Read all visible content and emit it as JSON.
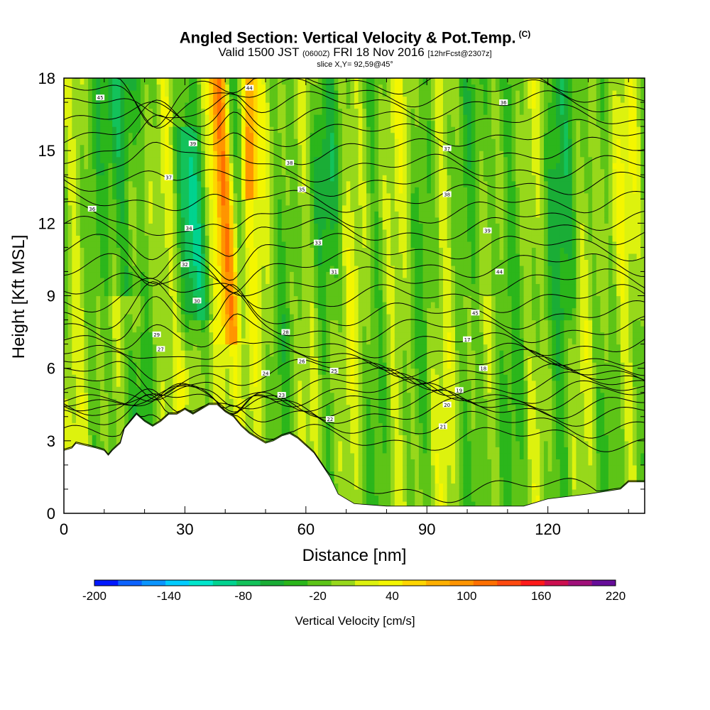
{
  "chart_data": {
    "type": "heatmap",
    "title": "Angled Section: Vertical Velocity & Pot.Temp.",
    "title_unit": "(C)",
    "subtitle": {
      "valid": "Valid 1500 JST",
      "utc": "(0600Z)",
      "date": "FRI 18 Nov 2016",
      "forecast": "[12hrFcst@2307z]"
    },
    "slice_note": "slice X,Y= 92,59@45°",
    "xlabel": "Distance [nm]",
    "ylabel": "Height [Kft MSL]",
    "xlim": [
      0,
      144
    ],
    "ylim": [
      0,
      18
    ],
    "x_ticks": [
      0,
      30,
      60,
      90,
      120
    ],
    "y_ticks": [
      0,
      3,
      6,
      9,
      12,
      15,
      18
    ],
    "colorbar": {
      "title": "Vertical Velocity [cm/s]",
      "levels": [
        -200,
        -180,
        -160,
        -140,
        -120,
        -100,
        -80,
        -60,
        -40,
        -20,
        0,
        20,
        40,
        60,
        80,
        100,
        120,
        140,
        160,
        180,
        200,
        220
      ],
      "labels": [
        "-200",
        "-140",
        "-80",
        "-20",
        "40",
        "100",
        "160",
        "220"
      ],
      "colors": [
        "#0018ff",
        "#0c63ff",
        "#0a95ff",
        "#00ccff",
        "#00e6cc",
        "#00d38f",
        "#13c25a",
        "#1aad36",
        "#2bb61b",
        "#5dc417",
        "#97d81b",
        "#ddf20e",
        "#f4f600",
        "#ffd600",
        "#ffb000",
        "#ff9500",
        "#ff7000",
        "#ff4a10",
        "#ff1a1a",
        "#cc0f50",
        "#a0107a",
        "#660d99"
      ]
    },
    "background_field": {
      "dominant_range_cm_s": [
        -40,
        40
      ],
      "notable_updrafts": [
        {
          "x": 40,
          "y_range": [
            7,
            18
          ],
          "max": 100
        },
        {
          "x": 46,
          "y_range": [
            14,
            18
          ],
          "max": 100
        },
        {
          "x": 30,
          "y_range": [
            4,
            7
          ],
          "max": 60
        }
      ],
      "notable_downdrafts": [
        {
          "x": 14,
          "y_range": [
            11,
            18
          ],
          "min": -100
        },
        {
          "x": 32,
          "y_range": [
            9,
            15
          ],
          "min": -80
        }
      ]
    },
    "terrain_profile": {
      "x": [
        0,
        2,
        3,
        8,
        10,
        11,
        12,
        14,
        15,
        18,
        20,
        22,
        24,
        26,
        28,
        30,
        32,
        34,
        36,
        38,
        40,
        42,
        44,
        46,
        48,
        50,
        52,
        54,
        56,
        58,
        60,
        62,
        64,
        66,
        68,
        72,
        80,
        90,
        100,
        110,
        114,
        120,
        130,
        138,
        140,
        144
      ],
      "height_kft": [
        2.6,
        2.7,
        2.9,
        2.7,
        2.6,
        2.4,
        2.6,
        2.9,
        3.5,
        4.1,
        3.8,
        3.6,
        3.8,
        4.1,
        4.1,
        4.3,
        4.1,
        4.3,
        4.5,
        4.5,
        4.2,
        4.0,
        3.6,
        3.3,
        3.1,
        2.9,
        3.0,
        3.2,
        3.3,
        3.1,
        2.8,
        2.5,
        2.0,
        1.5,
        0.8,
        0.4,
        0.3,
        0.3,
        0.3,
        0.3,
        0.3,
        0.6,
        0.8,
        1.0,
        1.3,
        1.3
      ]
    },
    "isentrope_labels": [
      "45",
      "44",
      "39",
      "38",
      "37",
      "36",
      "35",
      "34",
      "33",
      "32",
      "31",
      "30",
      "29",
      "28",
      "27",
      "26",
      "25",
      "24",
      "23",
      "22",
      "21",
      "20",
      "19",
      "18",
      "17"
    ],
    "theta_contours": {
      "levels_c": [
        16,
        17,
        18,
        19,
        20,
        21,
        22,
        23,
        24,
        25,
        26,
        27,
        28,
        29,
        30,
        31,
        32,
        33,
        34,
        35,
        36,
        37,
        38,
        39,
        40,
        41,
        42,
        43,
        44,
        45
      ],
      "base_height_kft": [
        1.0,
        3.1,
        3.7,
        4.2,
        4.5,
        4.8,
        5.0,
        5.3,
        5.6,
        5.9,
        6.2,
        6.5,
        7.0,
        7.6,
        8.2,
        8.9,
        9.6,
        10.3,
        11.0,
        11.7,
        12.3,
        13.0,
        13.7,
        14.3,
        15.0,
        15.7,
        16.3,
        16.9,
        17.4,
        17.9
      ]
    }
  }
}
